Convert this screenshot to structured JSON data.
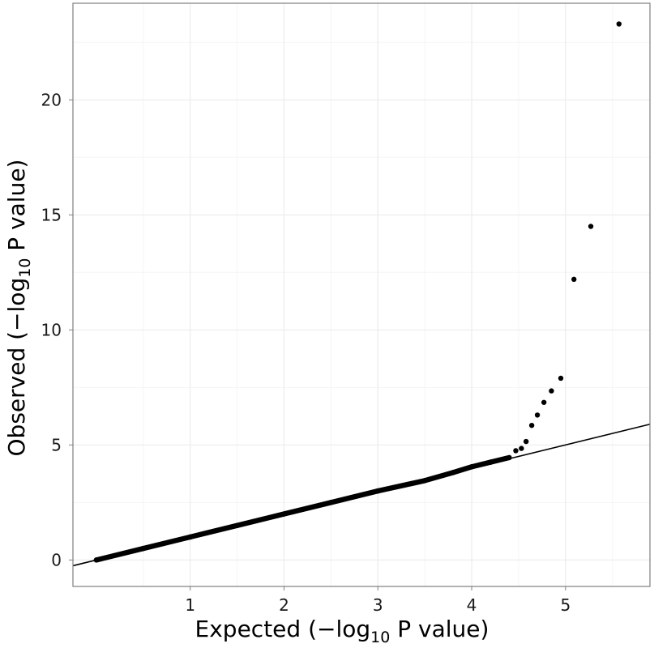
{
  "chart_data": {
    "type": "scatter",
    "title": "",
    "xlabel": {
      "prefix": "Expected (",
      "minus": "−",
      "log": "log",
      "base": "10",
      "suffix": " P value)"
    },
    "ylabel": {
      "prefix": "Observed (",
      "minus": "−",
      "log": "log",
      "base": "10",
      "suffix": " P value)"
    },
    "xlim": [
      -0.25,
      5.9
    ],
    "ylim": [
      -1.15,
      24.2
    ],
    "x_ticks": [
      1,
      2,
      3,
      4,
      5
    ],
    "x_tick_labels": [
      "1",
      "2",
      "3",
      "4",
      "5"
    ],
    "y_ticks": [
      0,
      5,
      10,
      15,
      20
    ],
    "y_tick_labels": [
      "0",
      "5",
      "10",
      "15",
      "20"
    ],
    "grid": true,
    "legend": "none",
    "reference_line": {
      "slope": 1,
      "intercept": 0
    },
    "points": {
      "x": [
        4.47,
        4.53,
        4.58,
        4.64,
        4.7,
        4.77,
        4.85,
        4.95,
        5.09,
        5.27,
        5.57
      ],
      "y": [
        4.75,
        4.85,
        5.15,
        5.85,
        6.3,
        6.85,
        7.35,
        7.9,
        12.2,
        14.5,
        23.3
      ]
    },
    "dense_band": {
      "x": [
        0.0,
        0.5,
        1.0,
        1.5,
        2.0,
        2.5,
        3.0,
        3.5,
        3.8,
        4.0,
        4.2,
        4.4
      ],
      "y": [
        0.0,
        0.5,
        1.0,
        1.5,
        2.0,
        2.5,
        3.0,
        3.45,
        3.8,
        4.05,
        4.25,
        4.45
      ]
    }
  }
}
